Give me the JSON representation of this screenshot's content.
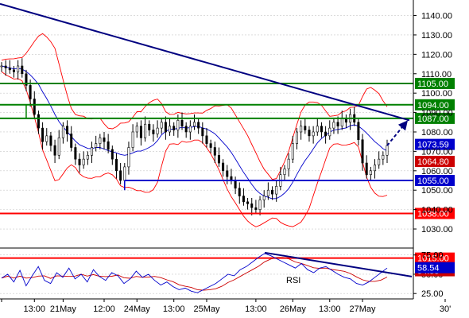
{
  "chart_data": [
    {
      "type": "candlestick",
      "y_ticks": [
        1030,
        1040,
        1050,
        1060,
        1070,
        1080,
        1090,
        1100,
        1110,
        1120,
        1130,
        1140
      ],
      "ylim": [
        1021,
        1148
      ],
      "grid": true,
      "levels": [
        {
          "value": 1105.0,
          "label": "1105.00",
          "color": "#008000",
          "kind": "resistance"
        },
        {
          "value": 1094.0,
          "label": "1094.00",
          "color": "#008000",
          "kind": "resistance"
        },
        {
          "value": 1087.0,
          "label": "1087.00",
          "color": "#008000",
          "kind": "resistance"
        },
        {
          "value": 1055.0,
          "label": "1055.00",
          "color": "#0000cc",
          "kind": "support"
        },
        {
          "value": 1038.0,
          "label": "1038.00",
          "color": "#ff0000",
          "kind": "support"
        },
        {
          "value": 1015.0,
          "label": "1015.00",
          "color": "#ff0000",
          "kind": "support"
        }
      ],
      "price_tags": [
        {
          "value": 1073.59,
          "label": "1073.59",
          "color": "#0000cc"
        },
        {
          "value": 1064.8,
          "label": "1064.80",
          "color": "#cc0000"
        }
      ],
      "close_series": [
        1114,
        1113,
        1112,
        1111,
        1114,
        1110,
        1104,
        1097,
        1089,
        1082,
        1075,
        1078,
        1073,
        1068,
        1077,
        1083,
        1079,
        1072,
        1066,
        1063,
        1066,
        1068,
        1072,
        1074,
        1077,
        1075,
        1071,
        1066,
        1060,
        1055,
        1062,
        1072,
        1080,
        1083,
        1077,
        1084,
        1081,
        1079,
        1082,
        1085,
        1080,
        1083,
        1081,
        1086,
        1083,
        1080,
        1083,
        1085,
        1082,
        1078,
        1074,
        1072,
        1068,
        1064,
        1060,
        1057,
        1055,
        1051,
        1047,
        1044,
        1043,
        1041,
        1040,
        1045,
        1047,
        1050,
        1048,
        1052,
        1058,
        1061,
        1066,
        1074,
        1080,
        1083,
        1081,
        1078,
        1080,
        1083,
        1080,
        1078,
        1082,
        1085,
        1083,
        1087,
        1085,
        1089,
        1085,
        1076,
        1064,
        1058,
        1060,
        1063,
        1066,
        1068,
        1073
      ]
    },
    {
      "type": "line",
      "indicator_label": "RSI",
      "y_ticks": [
        25.0,
        50.0,
        75.0
      ],
      "ylim": [
        18,
        84
      ],
      "last_value": {
        "value": 58.54,
        "label": "58.54",
        "color": "#0000cc"
      },
      "signal_tag": {
        "value": 54.55,
        "label": "54.55",
        "color": "#cc0000"
      },
      "series": [
        45,
        50,
        40,
        55,
        35,
        48,
        60,
        42,
        38,
        52,
        46,
        58,
        44,
        50,
        40,
        56,
        47,
        42,
        52,
        48,
        38,
        44,
        54,
        46,
        50,
        42,
        36,
        40,
        34,
        30,
        32,
        28,
        26,
        30,
        34,
        38,
        44,
        50,
        48,
        56,
        60,
        66,
        72,
        77,
        74,
        70,
        66,
        62,
        58,
        64,
        56,
        52,
        58,
        60,
        55,
        50,
        46,
        44,
        38,
        36,
        40,
        46,
        52,
        58
      ]
    }
  ],
  "x_axis": {
    "labels": [
      "",
      "13:00",
      "21May",
      "12:00",
      "24May",
      "13:00",
      "25May",
      "13:00",
      "26May",
      "13:00",
      "27May",
      "30'"
    ],
    "label_positions_data_index": [
      0,
      8,
      15,
      25,
      33,
      42,
      50,
      62,
      71,
      80,
      88,
      110
    ]
  },
  "colors": {
    "candle": "#000000",
    "bollinger": "#ff0000",
    "ma": "#0000cc",
    "trend": "#000080",
    "grid": "#c8c8c8"
  }
}
